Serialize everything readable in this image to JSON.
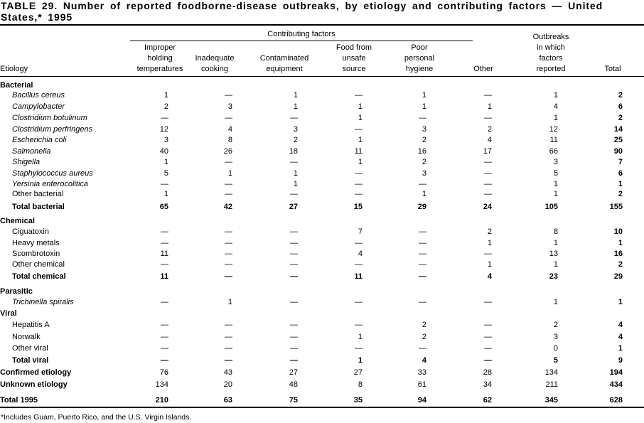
{
  "title": "TABLE 29. Number of reported foodborne-disease outbreaks, by etiology and contributing factors — United States,* 1995",
  "header": {
    "group_label": "Contributing factors",
    "etiology": "Etiology",
    "columns": [
      [
        "Improper",
        "holding",
        "temperatures"
      ],
      [
        "Inadequate",
        "cooking"
      ],
      [
        "Contaminated",
        "equipment"
      ],
      [
        "Food from",
        "unsafe",
        "source"
      ],
      [
        "Poor",
        "personal",
        "hygiene"
      ],
      [
        "Other"
      ],
      [
        "Outbreaks",
        "in which",
        "factors",
        "reported"
      ],
      [
        "Total"
      ]
    ]
  },
  "rows": [
    {
      "label": "Bacterial",
      "type": "group",
      "values": []
    },
    {
      "label": "Bacillus cereus",
      "type": "italic",
      "values": [
        "1",
        "—",
        "1",
        "—",
        "1",
        "—",
        "1",
        "2"
      ]
    },
    {
      "label": "Campylobacter",
      "type": "italic",
      "values": [
        "2",
        "3",
        "1",
        "1",
        "1",
        "1",
        "4",
        "6"
      ]
    },
    {
      "label": "Clostridium botulinum",
      "type": "italic",
      "values": [
        "—",
        "—",
        "—",
        "1",
        "—",
        "—",
        "1",
        "2"
      ]
    },
    {
      "label": "Clostridium perfringens",
      "type": "italic",
      "values": [
        "12",
        "4",
        "3",
        "—",
        "3",
        "2",
        "12",
        "14"
      ]
    },
    {
      "label": "Escherichia coli",
      "type": "italic",
      "values": [
        "3",
        "8",
        "2",
        "1",
        "2",
        "4",
        "11",
        "25"
      ]
    },
    {
      "label": "Salmonella",
      "type": "italic",
      "values": [
        "40",
        "26",
        "18",
        "11",
        "16",
        "17",
        "66",
        "90"
      ]
    },
    {
      "label": "Shigella",
      "type": "italic",
      "values": [
        "1",
        "—",
        "—",
        "1",
        "2",
        "—",
        "3",
        "7"
      ]
    },
    {
      "label": "Staphylococcus aureus",
      "type": "italic",
      "values": [
        "5",
        "1",
        "1",
        "—",
        "3",
        "—",
        "5",
        "6"
      ]
    },
    {
      "label": "Yersinia enterocolitica",
      "type": "italic",
      "values": [
        "—",
        "—",
        "1",
        "—",
        "—",
        "—",
        "1",
        "1"
      ]
    },
    {
      "label": "Other bacterial",
      "type": "item",
      "values": [
        "1",
        "—",
        "—",
        "—",
        "1",
        "—",
        "1",
        "2"
      ]
    },
    {
      "label": "Total bacterial",
      "type": "subtotal",
      "values": [
        "65",
        "42",
        "27",
        "15",
        "29",
        "24",
        "105",
        "155"
      ]
    },
    {
      "label": "Chemical",
      "type": "group",
      "values": []
    },
    {
      "label": "Ciguatoxin",
      "type": "item",
      "values": [
        "—",
        "—",
        "—",
        "7",
        "—",
        "2",
        "8",
        "10"
      ]
    },
    {
      "label": "Heavy metals",
      "type": "item",
      "values": [
        "—",
        "—",
        "—",
        "—",
        "—",
        "1",
        "1",
        "1"
      ]
    },
    {
      "label": "Scombrotoxin",
      "type": "item",
      "values": [
        "11",
        "—",
        "—",
        "4",
        "—",
        "—",
        "13",
        "16"
      ]
    },
    {
      "label": "Other chemical",
      "type": "item",
      "values": [
        "—",
        "—",
        "—",
        "—",
        "—",
        "1",
        "1",
        "2"
      ]
    },
    {
      "label": "Total chemical",
      "type": "subtotal",
      "values": [
        "11",
        "—",
        "—",
        "11",
        "—",
        "4",
        "23",
        "29"
      ]
    },
    {
      "label": "Parasitic",
      "type": "group",
      "values": []
    },
    {
      "label": "Trichinella spiralis",
      "type": "italic",
      "values": [
        "—",
        "1",
        "—",
        "—",
        "—",
        "—",
        "1",
        "1"
      ]
    },
    {
      "label": "Viral",
      "type": "group",
      "values": []
    },
    {
      "label": "Hepatitis A",
      "type": "item",
      "values": [
        "—",
        "—",
        "—",
        "—",
        "2",
        "—",
        "2",
        "4"
      ]
    },
    {
      "label": "Norwalk",
      "type": "item",
      "values": [
        "—",
        "—",
        "—",
        "1",
        "2",
        "—",
        "3",
        "4"
      ]
    },
    {
      "label": "Other viral",
      "type": "item",
      "values": [
        "—",
        "—",
        "—",
        "—",
        "—",
        "—",
        "0",
        "1"
      ]
    },
    {
      "label": "Total viral",
      "type": "subtotal",
      "values": [
        "—",
        "—",
        "—",
        "1",
        "4",
        "—",
        "5",
        "9"
      ]
    },
    {
      "label": "Confirmed etiology",
      "type": "summary",
      "values": [
        "76",
        "43",
        "27",
        "27",
        "33",
        "28",
        "134",
        "194"
      ]
    },
    {
      "label": "Unknown etiology",
      "type": "summary",
      "values": [
        "134",
        "20",
        "48",
        "8",
        "61",
        "34",
        "211",
        "434"
      ]
    },
    {
      "label": "Total 1995",
      "type": "grand",
      "values": [
        "210",
        "63",
        "75",
        "35",
        "94",
        "62",
        "345",
        "628"
      ]
    }
  ],
  "footnote": "*Includes Guam, Puerto Rico, and the U.S. Virgin Islands."
}
